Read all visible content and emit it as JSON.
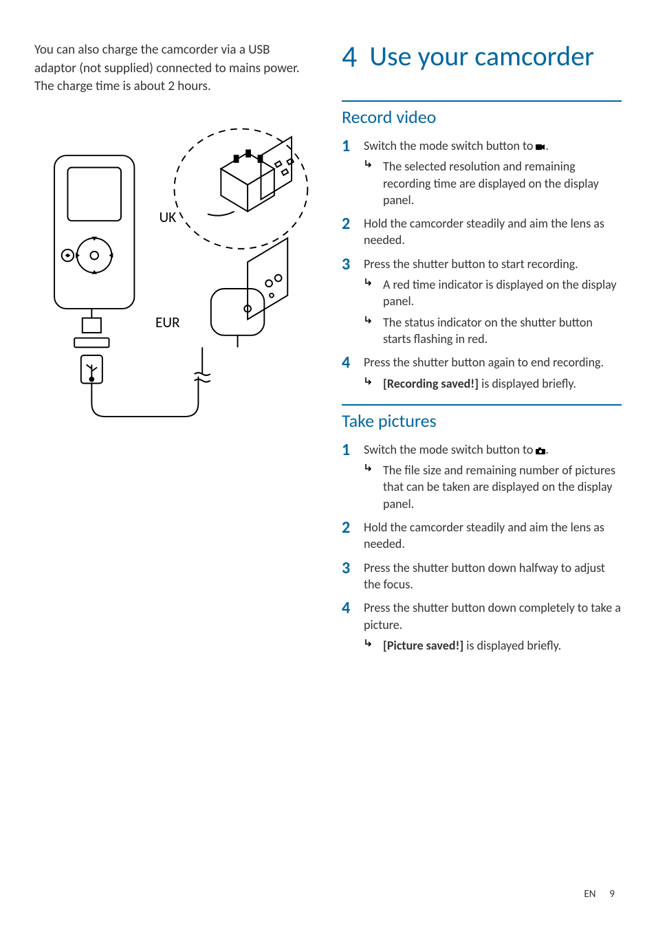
{
  "colors": {
    "accent": "#0066a1",
    "text": "#333333",
    "background": "#ffffff"
  },
  "typography": {
    "body_fontsize": 18,
    "chapter_num_fontsize": 44,
    "chapter_text_fontsize": 40,
    "section_fontsize": 26,
    "step_num_fontsize": 24,
    "footer_fontsize": 15
  },
  "left": {
    "intro": "You can also charge the camcorder via a USB adaptor (not supplied) connected to mains power. The charge time is about 2 hours.",
    "diagram_labels": {
      "uk": "UK",
      "eur": "EUR"
    }
  },
  "chapter": {
    "number": "4",
    "title": "Use your camcorder"
  },
  "sections": [
    {
      "title": "Record video",
      "steps": [
        {
          "n": "1",
          "text": "Switch the mode switch button to ",
          "icon": "video",
          "tail": ".",
          "subs": [
            "The selected resolution and remaining recording time are displayed on the display panel."
          ]
        },
        {
          "n": "2",
          "text": "Hold the camcorder steadily and aim the lens as needed.",
          "subs": []
        },
        {
          "n": "3",
          "text": "Press the shutter button to start recording.",
          "subs": [
            "A red time indicator is displayed on the display panel.",
            "The status indicator on the shutter button starts flashing in red."
          ]
        },
        {
          "n": "4",
          "text": "Press the shutter button again to end recording.",
          "subs": [
            {
              "bold": "[Recording saved!]",
              "rest": " is displayed briefly."
            }
          ]
        }
      ]
    },
    {
      "title": "Take pictures",
      "steps": [
        {
          "n": "1",
          "text": "Switch the mode switch button to ",
          "icon": "camera",
          "tail": ".",
          "subs": [
            "The file size and remaining number of pictures that can be taken are displayed on the display panel."
          ]
        },
        {
          "n": "2",
          "text": "Hold the camcorder steadily and aim the lens as needed.",
          "subs": []
        },
        {
          "n": "3",
          "text": "Press the shutter button down halfway to adjust the focus.",
          "subs": []
        },
        {
          "n": "4",
          "text": "Press the shutter button down completely to take a picture.",
          "subs": [
            {
              "bold": "[Picture saved!]",
              "rest": " is displayed briefly."
            }
          ]
        }
      ]
    }
  ],
  "footer": {
    "lang": "EN",
    "page": "9"
  }
}
